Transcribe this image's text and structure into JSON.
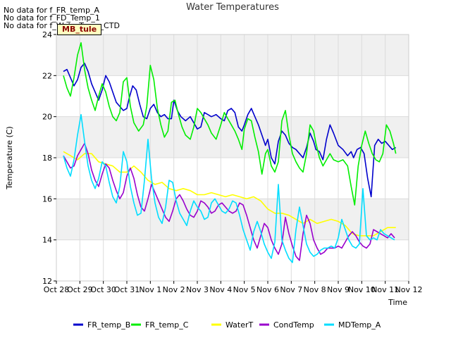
{
  "notes": [
    "No data for f_FR_temp_A",
    "No data for f_FD_Temp_1",
    "No data for f_WaterTemp_CTD"
  ],
  "badge": "MB_tule",
  "chart_data": {
    "type": "line",
    "title": "Water Temperatures",
    "xlabel": "Time",
    "ylabel": "Temperature (C)",
    "ylim": [
      12,
      24
    ],
    "xlim": [
      0,
      15
    ],
    "yticks": [
      12,
      14,
      16,
      18,
      20,
      22,
      24
    ],
    "xticks": [
      0,
      1,
      2,
      3,
      4,
      5,
      6,
      7,
      8,
      9,
      10,
      11,
      12,
      13,
      14,
      15
    ],
    "xtick_labels": [
      "Oct 28",
      "Oct 29",
      "Oct 30",
      "Oct 31",
      "Nov 1",
      "Nov 2",
      "Nov 3",
      "Nov 4",
      "Nov 5",
      "Nov 6",
      "Nov 7",
      "Nov 8",
      "Nov 9",
      "Nov 10",
      "Nov 11",
      "Nov 12"
    ],
    "grid": true,
    "bands": "alternating light gray horizontal bands",
    "legend_position": "bottom",
    "series": [
      {
        "name": "FR_temp_B",
        "color": "#0000cc",
        "x": [
          0.3,
          0.45,
          0.6,
          0.75,
          0.9,
          1.05,
          1.2,
          1.35,
          1.5,
          1.65,
          1.8,
          1.95,
          2.1,
          2.25,
          2.4,
          2.55,
          2.7,
          2.85,
          3.0,
          3.1,
          3.25,
          3.4,
          3.55,
          3.7,
          3.85,
          4.0,
          4.15,
          4.3,
          4.45,
          4.6,
          4.75,
          4.9,
          5.0,
          5.15,
          5.3,
          5.5,
          5.7,
          5.85,
          6.0,
          6.15,
          6.3,
          6.45,
          6.6,
          6.8,
          7.0,
          7.15,
          7.3,
          7.45,
          7.6,
          7.75,
          7.9,
          8.0,
          8.15,
          8.3,
          8.45,
          8.6,
          8.75,
          8.9,
          9.0,
          9.15,
          9.3,
          9.45,
          9.6,
          9.75,
          9.9,
          10.05,
          10.2,
          10.35,
          10.5,
          10.65,
          10.8,
          10.95,
          11.05,
          11.2,
          11.35,
          11.5,
          11.65,
          11.8,
          12.0,
          12.2,
          12.4,
          12.55,
          12.65,
          12.8,
          12.95,
          13.1,
          13.25,
          13.4,
          13.55,
          13.7,
          13.85,
          14.0,
          14.15,
          14.3,
          14.45
        ],
        "values": [
          22.2,
          22.3,
          21.9,
          21.5,
          21.8,
          22.4,
          22.6,
          22.2,
          21.6,
          21.2,
          20.8,
          21.3,
          22.0,
          21.7,
          21.2,
          20.7,
          20.5,
          20.3,
          20.4,
          20.9,
          21.5,
          21.3,
          20.6,
          20.0,
          19.9,
          20.4,
          20.6,
          20.2,
          20.0,
          20.1,
          19.9,
          19.9,
          20.8,
          20.3,
          20.0,
          19.8,
          20.0,
          19.7,
          19.4,
          19.5,
          20.2,
          20.1,
          20.0,
          20.1,
          19.9,
          19.8,
          20.3,
          20.4,
          20.2,
          19.5,
          19.3,
          19.6,
          20.1,
          20.4,
          20.0,
          19.6,
          19.1,
          18.6,
          18.9,
          18.0,
          17.7,
          18.8,
          19.3,
          19.1,
          18.7,
          18.5,
          18.4,
          18.2,
          18.0,
          18.5,
          19.2,
          18.8,
          18.4,
          18.3,
          17.9,
          18.9,
          19.6,
          19.2,
          18.6,
          18.4,
          18.1,
          18.3,
          18.0,
          18.4,
          18.5,
          18.2,
          17.0,
          16.1,
          18.6,
          18.9,
          18.7,
          18.8,
          18.6,
          18.4,
          18.5
        ]
      },
      {
        "name": "FR_temp_C",
        "color": "#00ee00",
        "x": [
          0.3,
          0.45,
          0.6,
          0.75,
          0.9,
          1.05,
          1.2,
          1.35,
          1.5,
          1.65,
          1.8,
          1.95,
          2.1,
          2.25,
          2.4,
          2.55,
          2.7,
          2.85,
          3.0,
          3.15,
          3.3,
          3.5,
          3.7,
          3.85,
          4.0,
          4.15,
          4.3,
          4.45,
          4.6,
          4.75,
          4.9,
          5.05,
          5.2,
          5.35,
          5.5,
          5.7,
          5.85,
          6.0,
          6.15,
          6.3,
          6.45,
          6.6,
          6.8,
          7.0,
          7.15,
          7.3,
          7.45,
          7.6,
          7.75,
          7.9,
          8.0,
          8.15,
          8.3,
          8.45,
          8.6,
          8.75,
          8.9,
          9.0,
          9.15,
          9.3,
          9.45,
          9.6,
          9.75,
          9.9,
          10.05,
          10.2,
          10.35,
          10.5,
          10.65,
          10.8,
          10.95,
          11.05,
          11.2,
          11.35,
          11.5,
          11.65,
          11.8,
          12.0,
          12.2,
          12.4,
          12.55,
          12.7,
          12.85,
          13.0,
          13.15,
          13.3,
          13.45,
          13.6,
          13.75,
          13.9,
          14.05,
          14.2,
          14.35,
          14.45
        ],
        "values": [
          22.0,
          21.4,
          21.0,
          21.9,
          23.0,
          23.6,
          22.3,
          21.4,
          20.8,
          20.3,
          21.0,
          21.6,
          21.2,
          20.5,
          20.0,
          19.8,
          20.2,
          21.7,
          21.9,
          20.5,
          19.7,
          19.3,
          19.6,
          20.5,
          22.5,
          21.8,
          20.4,
          19.6,
          19.0,
          19.3,
          20.7,
          20.8,
          20.1,
          19.5,
          19.1,
          18.9,
          19.5,
          20.4,
          20.2,
          19.9,
          19.6,
          19.2,
          18.9,
          19.6,
          20.2,
          19.9,
          19.6,
          19.3,
          18.9,
          18.4,
          19.4,
          19.9,
          19.8,
          19.0,
          18.3,
          17.2,
          18.2,
          18.4,
          17.6,
          17.3,
          17.8,
          19.8,
          20.3,
          19.1,
          18.2,
          17.8,
          17.5,
          17.3,
          18.2,
          19.6,
          19.3,
          18.7,
          18.0,
          17.6,
          17.9,
          18.2,
          17.9,
          17.8,
          17.9,
          17.6,
          16.6,
          15.7,
          17.6,
          18.6,
          19.3,
          18.7,
          18.2,
          17.9,
          17.8,
          18.2,
          19.6,
          19.3,
          18.7,
          18.2
        ]
      },
      {
        "name": "WaterT",
        "color": "#ffff00",
        "x": [
          0.3,
          0.6,
          0.9,
          1.2,
          1.5,
          1.8,
          2.1,
          2.4,
          2.7,
          3.0,
          3.3,
          3.6,
          3.9,
          4.2,
          4.5,
          4.8,
          5.1,
          5.4,
          5.7,
          6.0,
          6.3,
          6.6,
          6.9,
          7.2,
          7.5,
          7.8,
          8.1,
          8.4,
          8.7,
          9.0,
          9.3,
          9.6,
          9.9,
          10.2,
          10.5,
          10.8,
          11.1,
          11.4,
          11.7,
          12.0,
          12.3,
          12.6,
          12.9,
          13.2,
          13.5,
          13.8,
          14.1,
          14.45
        ],
        "values": [
          18.3,
          18.1,
          17.9,
          18.2,
          18.2,
          17.8,
          17.7,
          17.6,
          17.3,
          17.3,
          17.6,
          17.3,
          16.9,
          16.7,
          16.8,
          16.5,
          16.4,
          16.5,
          16.4,
          16.2,
          16.2,
          16.3,
          16.2,
          16.1,
          16.2,
          16.1,
          16.0,
          16.1,
          15.9,
          15.5,
          15.3,
          15.3,
          15.2,
          15.0,
          14.8,
          15.0,
          14.8,
          14.9,
          15.0,
          14.9,
          14.7,
          14.3,
          14.2,
          14.2,
          14.2,
          14.4,
          14.6,
          14.6
        ]
      },
      {
        "name": "CondTemp",
        "color": "#9900cc",
        "x": [
          0.3,
          0.45,
          0.6,
          0.75,
          0.9,
          1.05,
          1.2,
          1.35,
          1.5,
          1.65,
          1.8,
          1.95,
          2.1,
          2.25,
          2.4,
          2.55,
          2.7,
          2.85,
          3.0,
          3.15,
          3.3,
          3.45,
          3.6,
          3.75,
          3.9,
          4.05,
          4.2,
          4.35,
          4.5,
          4.65,
          4.8,
          4.95,
          5.1,
          5.25,
          5.4,
          5.55,
          5.7,
          5.85,
          6.0,
          6.15,
          6.3,
          6.45,
          6.6,
          6.75,
          6.9,
          7.05,
          7.2,
          7.35,
          7.5,
          7.65,
          7.8,
          7.95,
          8.1,
          8.25,
          8.4,
          8.55,
          8.7,
          8.85,
          9.0,
          9.15,
          9.3,
          9.45,
          9.6,
          9.75,
          9.9,
          10.05,
          10.2,
          10.35,
          10.5,
          10.65,
          10.8,
          10.95,
          11.1,
          11.25,
          11.4,
          11.55,
          11.7,
          11.85,
          12.0,
          12.15,
          12.3,
          12.45,
          12.6,
          12.75,
          12.9,
          13.05,
          13.2,
          13.35,
          13.5,
          13.65,
          13.8,
          13.95,
          14.1,
          14.25,
          14.4
        ],
        "values": [
          18.1,
          17.8,
          17.5,
          17.6,
          18.1,
          18.4,
          18.7,
          18.2,
          17.4,
          16.9,
          16.6,
          17.2,
          17.7,
          17.5,
          16.9,
          16.4,
          16.0,
          16.3,
          17.1,
          17.5,
          17.0,
          16.2,
          15.6,
          15.4,
          16.0,
          16.7,
          16.3,
          15.9,
          15.5,
          15.1,
          14.9,
          15.4,
          16.0,
          16.2,
          15.9,
          15.5,
          15.2,
          15.1,
          15.4,
          15.9,
          15.8,
          15.6,
          15.3,
          15.4,
          15.7,
          15.8,
          15.6,
          15.4,
          15.3,
          15.4,
          15.8,
          15.7,
          15.2,
          14.6,
          14.0,
          13.6,
          14.2,
          14.8,
          14.6,
          14.0,
          13.6,
          13.3,
          13.8,
          15.1,
          14.3,
          13.7,
          13.2,
          13.0,
          14.3,
          15.2,
          14.8,
          14.0,
          13.6,
          13.3,
          13.4,
          13.6,
          13.6,
          13.6,
          13.7,
          13.6,
          13.9,
          14.2,
          14.4,
          14.2,
          13.9,
          13.7,
          13.6,
          13.8,
          14.5,
          14.4,
          14.3,
          14.2,
          14.1,
          14.3,
          14.1
        ]
      },
      {
        "name": "MDTemp_A",
        "color": "#00ddff",
        "x": [
          0.3,
          0.45,
          0.6,
          0.75,
          0.9,
          1.05,
          1.2,
          1.35,
          1.5,
          1.65,
          1.8,
          1.95,
          2.1,
          2.25,
          2.4,
          2.55,
          2.7,
          2.85,
          3.0,
          3.15,
          3.3,
          3.45,
          3.6,
          3.75,
          3.9,
          4.05,
          4.2,
          4.35,
          4.5,
          4.65,
          4.8,
          4.95,
          5.1,
          5.25,
          5.4,
          5.55,
          5.7,
          5.85,
          6.0,
          6.15,
          6.3,
          6.45,
          6.6,
          6.75,
          6.9,
          7.05,
          7.2,
          7.35,
          7.5,
          7.65,
          7.8,
          7.95,
          8.1,
          8.25,
          8.4,
          8.55,
          8.7,
          8.85,
          9.0,
          9.15,
          9.3,
          9.45,
          9.6,
          9.75,
          9.9,
          10.05,
          10.2,
          10.35,
          10.5,
          10.65,
          10.8,
          10.95,
          11.1,
          11.25,
          11.4,
          11.55,
          11.7,
          11.85,
          12.0,
          12.15,
          12.3,
          12.45,
          12.6,
          12.75,
          12.9,
          13.05,
          13.2,
          13.35,
          13.5,
          13.65,
          13.8,
          13.95,
          14.1,
          14.25,
          14.4
        ],
        "values": [
          18.1,
          17.5,
          17.1,
          17.9,
          19.1,
          20.1,
          18.8,
          17.6,
          16.9,
          16.5,
          17.0,
          17.8,
          17.6,
          16.8,
          16.1,
          15.8,
          16.6,
          18.3,
          17.8,
          16.6,
          15.8,
          15.2,
          15.3,
          16.9,
          18.9,
          17.0,
          15.8,
          15.1,
          14.8,
          15.6,
          16.9,
          16.8,
          15.9,
          15.3,
          15.0,
          14.7,
          15.4,
          15.9,
          15.6,
          15.4,
          15.0,
          15.1,
          15.8,
          16.0,
          15.7,
          15.4,
          15.3,
          15.5,
          15.9,
          15.8,
          15.2,
          14.5,
          14.0,
          13.5,
          14.4,
          14.9,
          14.4,
          13.8,
          13.4,
          13.1,
          13.9,
          16.7,
          14.0,
          13.5,
          13.1,
          12.9,
          14.5,
          15.6,
          14.7,
          13.8,
          13.4,
          13.2,
          13.3,
          13.5,
          13.6,
          13.6,
          13.7,
          13.6,
          14.1,
          15.0,
          14.5,
          14.0,
          13.7,
          13.6,
          13.8,
          16.5,
          14.2,
          14.0,
          14.1,
          14.0,
          14.5,
          14.3,
          14.2,
          14.1,
          14.0
        ]
      }
    ]
  }
}
